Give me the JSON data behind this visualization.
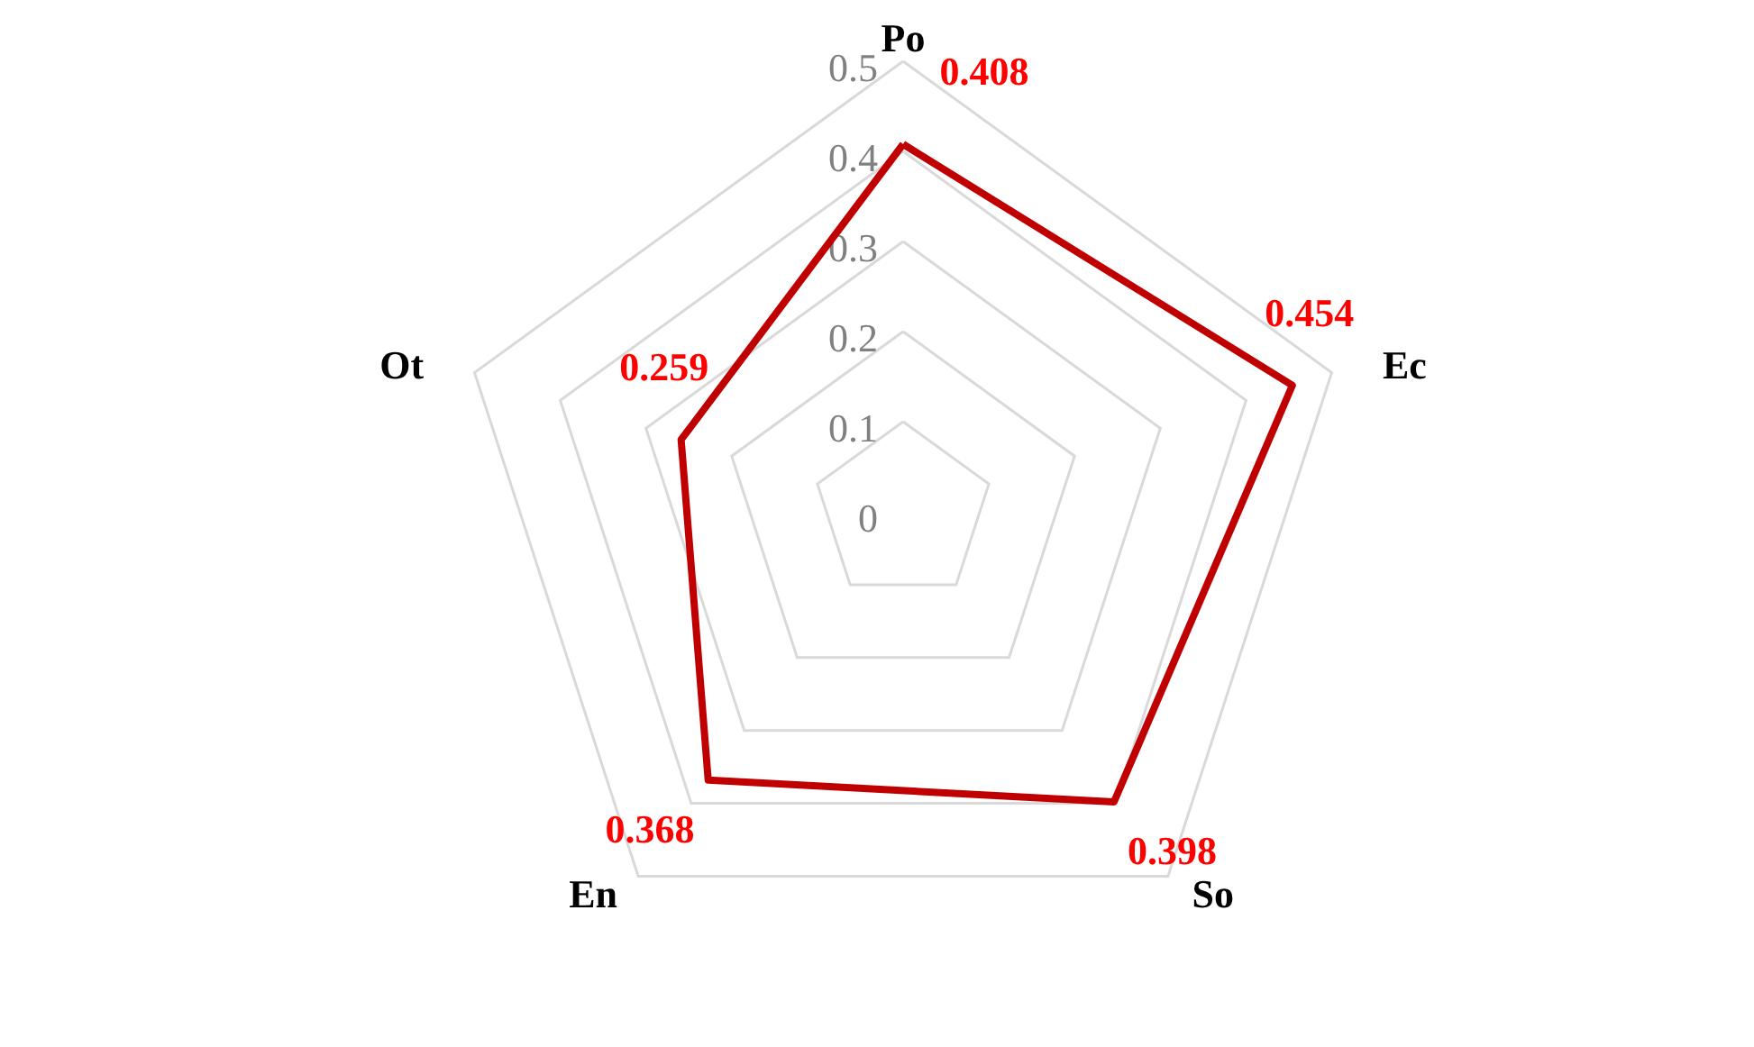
{
  "chart_data": {
    "type": "radar",
    "categories": [
      "Po",
      "Ec",
      "So",
      "En",
      "Ot"
    ],
    "series": [
      {
        "color": "#c00000",
        "values": [
          0.408,
          0.454,
          0.398,
          0.368,
          0.259
        ]
      }
    ],
    "ylim": [
      0,
      0.5
    ],
    "yticks": [
      0,
      0.1,
      0.2,
      0.3,
      0.4,
      0.5
    ],
    "grid": true,
    "data_labels": true
  }
}
